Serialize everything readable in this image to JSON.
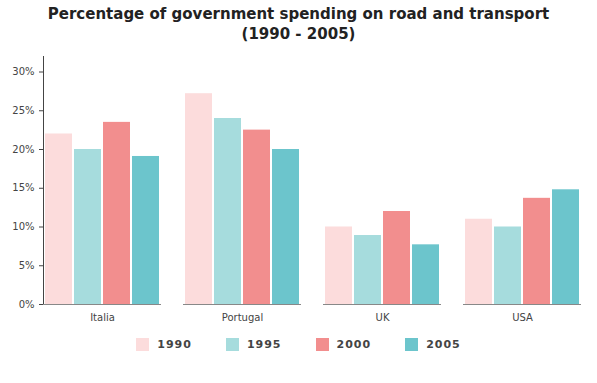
{
  "chart_data": {
    "type": "bar",
    "title": "Percentage of government spending on road and transport",
    "subtitle": "(1990 - 2005)",
    "categories": [
      "Italia",
      "Portugal",
      "UK",
      "USA"
    ],
    "series": [
      {
        "name": "1990",
        "color": "#fcdcdc",
        "values": [
          22,
          27.2,
          10,
          11
        ]
      },
      {
        "name": "1995",
        "color": "#a6dcdd",
        "values": [
          20,
          24,
          8.9,
          10
        ]
      },
      {
        "name": "2000",
        "color": "#f28e8e",
        "values": [
          23.5,
          22.5,
          12,
          13.7
        ]
      },
      {
        "name": "2005",
        "color": "#6cc5cc",
        "values": [
          19.1,
          20,
          7.7,
          14.8
        ]
      }
    ],
    "ylim": [
      0,
      32
    ],
    "yticks": [
      {
        "value": 0,
        "label": "0%"
      },
      {
        "value": 5,
        "label": "5%"
      },
      {
        "value": 10,
        "label": "10%"
      },
      {
        "value": 15,
        "label": "15%"
      },
      {
        "value": 20,
        "label": "20%"
      },
      {
        "value": 25,
        "label": "25%"
      },
      {
        "value": 30,
        "label": "30%"
      }
    ],
    "grid": false,
    "legend": "bottom"
  }
}
